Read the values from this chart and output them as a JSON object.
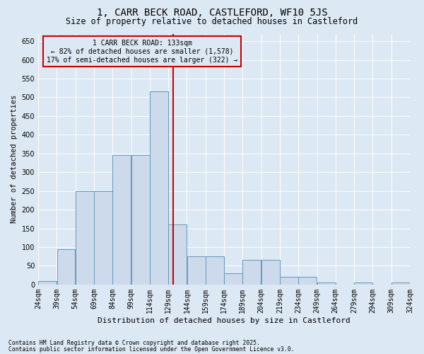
{
  "title": "1, CARR BECK ROAD, CASTLEFORD, WF10 5JS",
  "subtitle": "Size of property relative to detached houses in Castleford",
  "xlabel": "Distribution of detached houses by size in Castleford",
  "ylabel": "Number of detached properties",
  "footnote1": "Contains HM Land Registry data © Crown copyright and database right 2025.",
  "footnote2": "Contains public sector information licensed under the Open Government Licence v3.0.",
  "annotation_title": "1 CARR BECK ROAD: 133sqm",
  "annotation_line1": "← 82% of detached houses are smaller (1,578)",
  "annotation_line2": "17% of semi-detached houses are larger (322) →",
  "bin_edges": [
    24,
    39,
    54,
    69,
    84,
    99,
    114,
    129,
    144,
    159,
    174,
    189,
    204,
    219,
    234,
    249,
    264,
    279,
    294,
    309,
    324
  ],
  "bar_heights": [
    10,
    95,
    250,
    250,
    345,
    345,
    515,
    160,
    75,
    75,
    30,
    65,
    65,
    20,
    20,
    5,
    0,
    5,
    0,
    5
  ],
  "bar_color": "#ccdaeb",
  "bar_edge_color": "#6699bb",
  "vline_color": "#cc0000",
  "vline_x": 133,
  "annotation_box_edgecolor": "#cc0000",
  "background_color": "#dce8f3",
  "ylim": [
    0,
    670
  ],
  "yticks": [
    0,
    50,
    100,
    150,
    200,
    250,
    300,
    350,
    400,
    450,
    500,
    550,
    600,
    650
  ],
  "title_fontsize": 10,
  "subtitle_fontsize": 8.5,
  "ylabel_fontsize": 7.5,
  "xlabel_fontsize": 8,
  "tick_fontsize": 7,
  "annotation_fontsize": 7,
  "footnote_fontsize": 5.8
}
